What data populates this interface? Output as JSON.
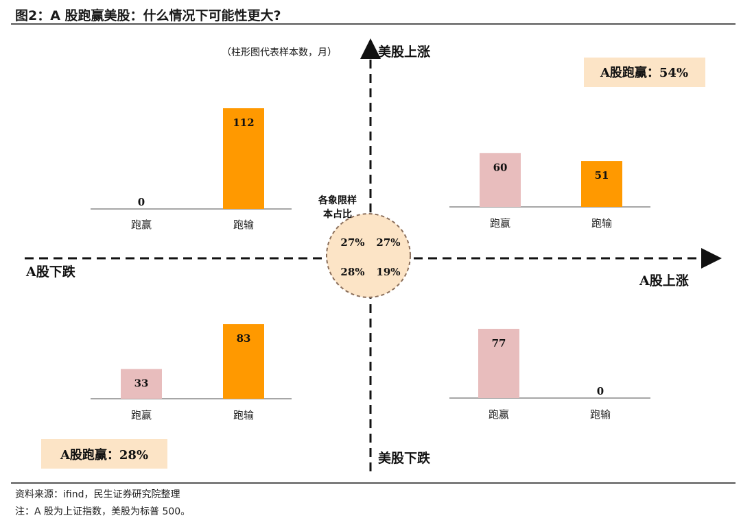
{
  "header": {
    "title": "图2：A 股跑赢美股：什么情况下可能性更大?"
  },
  "footer": {
    "source": "资料来源：ifind，民生证券研究院整理",
    "note": "注：A 股为上证指数，美股为标普 500。"
  },
  "colors": {
    "win": "#e8bdbd",
    "lose": "#ff9900",
    "box": "#fce4c6",
    "circle": "#fce4c6"
  },
  "chart_data": {
    "type": "bar",
    "title": "A 股跑赢美股：什么情况下可能性更大?",
    "unit_note": "（柱形图代表样本数，月）",
    "axes": {
      "y_top": "美股上涨",
      "y_bottom": "美股下跌",
      "x_left": "A股下跌",
      "x_right": "A股上涨"
    },
    "center_label": [
      "各象限样",
      "本占比"
    ],
    "quadrant_shares": {
      "top_left": "27%",
      "top_right": "27%",
      "bottom_left": "28%",
      "bottom_right": "19%"
    },
    "categories": [
      "跑赢",
      "跑输"
    ],
    "quadrants": [
      {
        "id": "top-left",
        "values": [
          0,
          112
        ]
      },
      {
        "id": "top-right",
        "values": [
          60,
          51
        ],
        "box": "A股跑赢：54%"
      },
      {
        "id": "bottom-left",
        "values": [
          33,
          83
        ],
        "box": "A股跑赢：28%"
      },
      {
        "id": "bottom-right",
        "values": [
          77,
          0
        ]
      }
    ]
  }
}
